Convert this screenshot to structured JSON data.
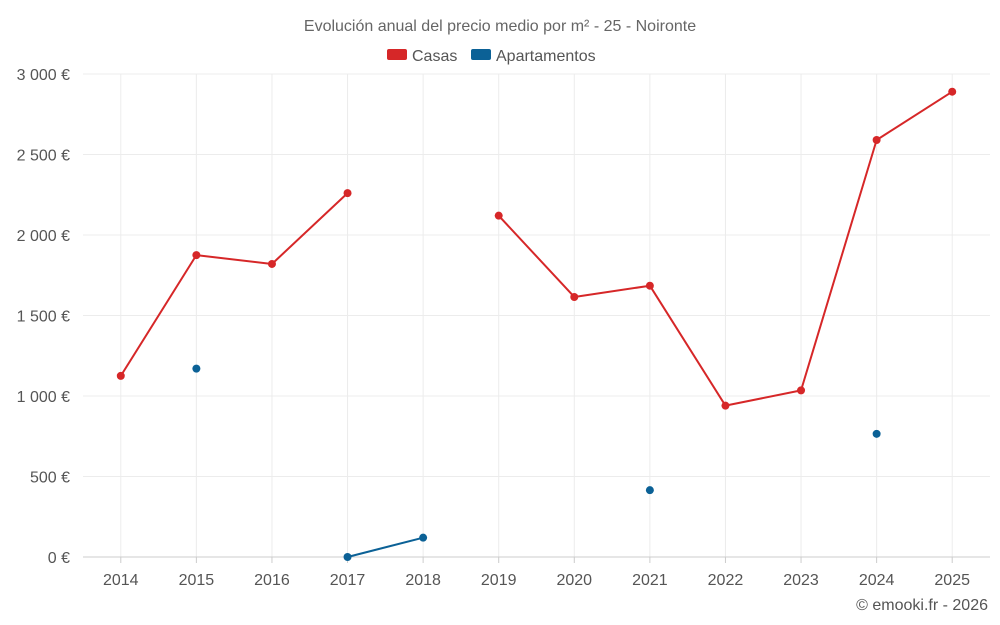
{
  "chart_data": {
    "type": "line",
    "title": "Evolución anual del precio medio por m² - 25 - Noironte",
    "xlabel": "",
    "ylabel": "",
    "categories": [
      "2014",
      "2015",
      "2016",
      "2017",
      "2018",
      "2019",
      "2020",
      "2021",
      "2022",
      "2023",
      "2024",
      "2025"
    ],
    "ylim": [
      0,
      3000
    ],
    "yticks": [
      0,
      500,
      1000,
      1500,
      2000,
      2500,
      3000
    ],
    "ytick_labels": [
      "0 €",
      "500 €",
      "1 000 €",
      "1 500 €",
      "2 000 €",
      "2 500 €",
      "3 000 €"
    ],
    "grid": true,
    "legend_position": "top-center",
    "series": [
      {
        "name": "Casas",
        "color": "#d62728",
        "values": [
          1125,
          1875,
          1820,
          2260,
          null,
          2120,
          1615,
          1685,
          940,
          1035,
          2590,
          2890
        ]
      },
      {
        "name": "Apartamentos",
        "color": "#0b6196",
        "values": [
          null,
          1170,
          null,
          0,
          120,
          null,
          null,
          415,
          null,
          null,
          765,
          null
        ]
      }
    ],
    "credit": "© emooki.fr - 2026"
  }
}
